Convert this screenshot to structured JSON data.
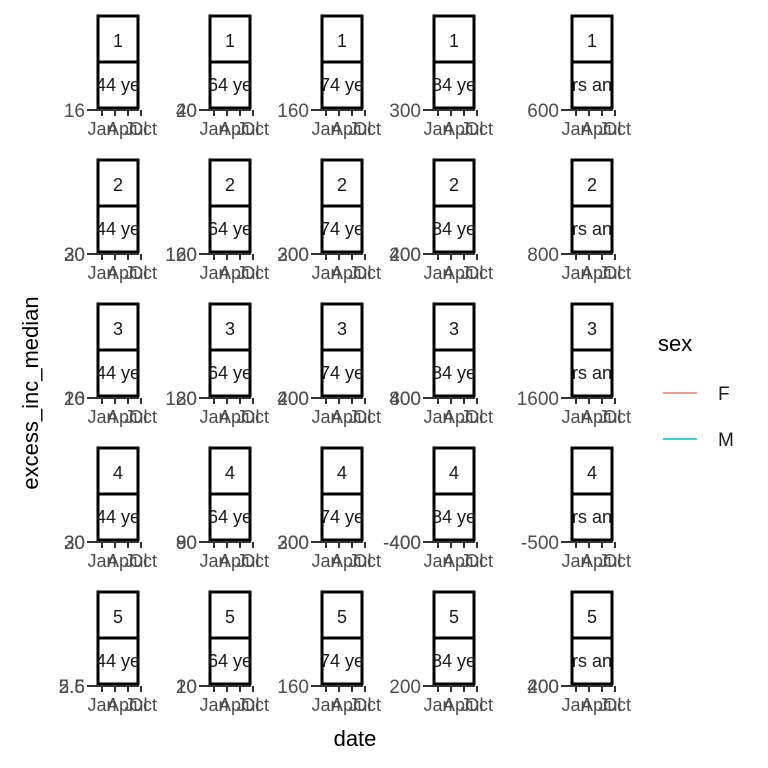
{
  "chart_data": {
    "type": "line",
    "xlabel": "date",
    "ylabel": "excess_inc_median",
    "x_tick_labels": [
      "Jan",
      "Apr",
      "Jul",
      "Oct"
    ],
    "legend": {
      "title": "sex",
      "position": "right",
      "entries": [
        {
          "name": "F",
          "color": "#F8766D"
        },
        {
          "name": "M",
          "color": "#00BFC4"
        }
      ]
    },
    "col_strip_labels": [
      "44 ye",
      "64 ye",
      "74 ye",
      "84 ye",
      "rs an"
    ],
    "row_strip_labels": [
      "1",
      "2",
      "3",
      "4",
      "5"
    ],
    "panels": [
      [
        {
          "y_ticks": [
            "16"
          ],
          "series": []
        },
        {
          "y_ticks": [
            "40",
            "20"
          ],
          "series": []
        },
        {
          "y_ticks": [
            "160"
          ],
          "series": []
        },
        {
          "y_ticks": [
            "300"
          ],
          "series": []
        },
        {
          "y_ticks": [
            "600"
          ],
          "series": []
        }
      ],
      [
        {
          "y_ticks": [
            "30",
            "20"
          ],
          "series": []
        },
        {
          "y_ticks": [
            "160",
            "120"
          ],
          "series": []
        },
        {
          "y_ticks": [
            "300",
            "200"
          ],
          "series": []
        },
        {
          "y_ticks": [
            "200",
            "400"
          ],
          "series": []
        },
        {
          "y_ticks": [
            "800"
          ],
          "series": []
        }
      ],
      [
        {
          "y_ticks": [
            "20",
            "16"
          ],
          "series": []
        },
        {
          "y_ticks": [
            "120",
            "80"
          ],
          "series": []
        },
        {
          "y_ticks": [
            "200",
            "400"
          ],
          "series": []
        },
        {
          "y_ticks": [
            "400",
            "800"
          ],
          "series": []
        },
        {
          "y_ticks": [
            "1600"
          ],
          "series": []
        }
      ],
      [
        {
          "y_ticks": [
            "20",
            "30"
          ],
          "series": []
        },
        {
          "y_ticks": [
            "80",
            "90"
          ],
          "series": []
        },
        {
          "y_ticks": [
            "300",
            "200"
          ],
          "series": []
        },
        {
          "y_ticks": [
            "-400",
            "400"
          ],
          "series": []
        },
        {
          "y_ticks": [
            "-500"
          ],
          "series": []
        }
      ],
      [
        {
          "y_ticks": [
            "5.6",
            "2.5"
          ],
          "series": []
        },
        {
          "y_ticks": [
            "20",
            "10"
          ],
          "series": []
        },
        {
          "y_ticks": [
            "160"
          ],
          "series": []
        },
        {
          "y_ticks": [
            "200"
          ],
          "series": []
        },
        {
          "y_ticks": [
            "400",
            "200"
          ],
          "series": []
        }
      ]
    ]
  }
}
